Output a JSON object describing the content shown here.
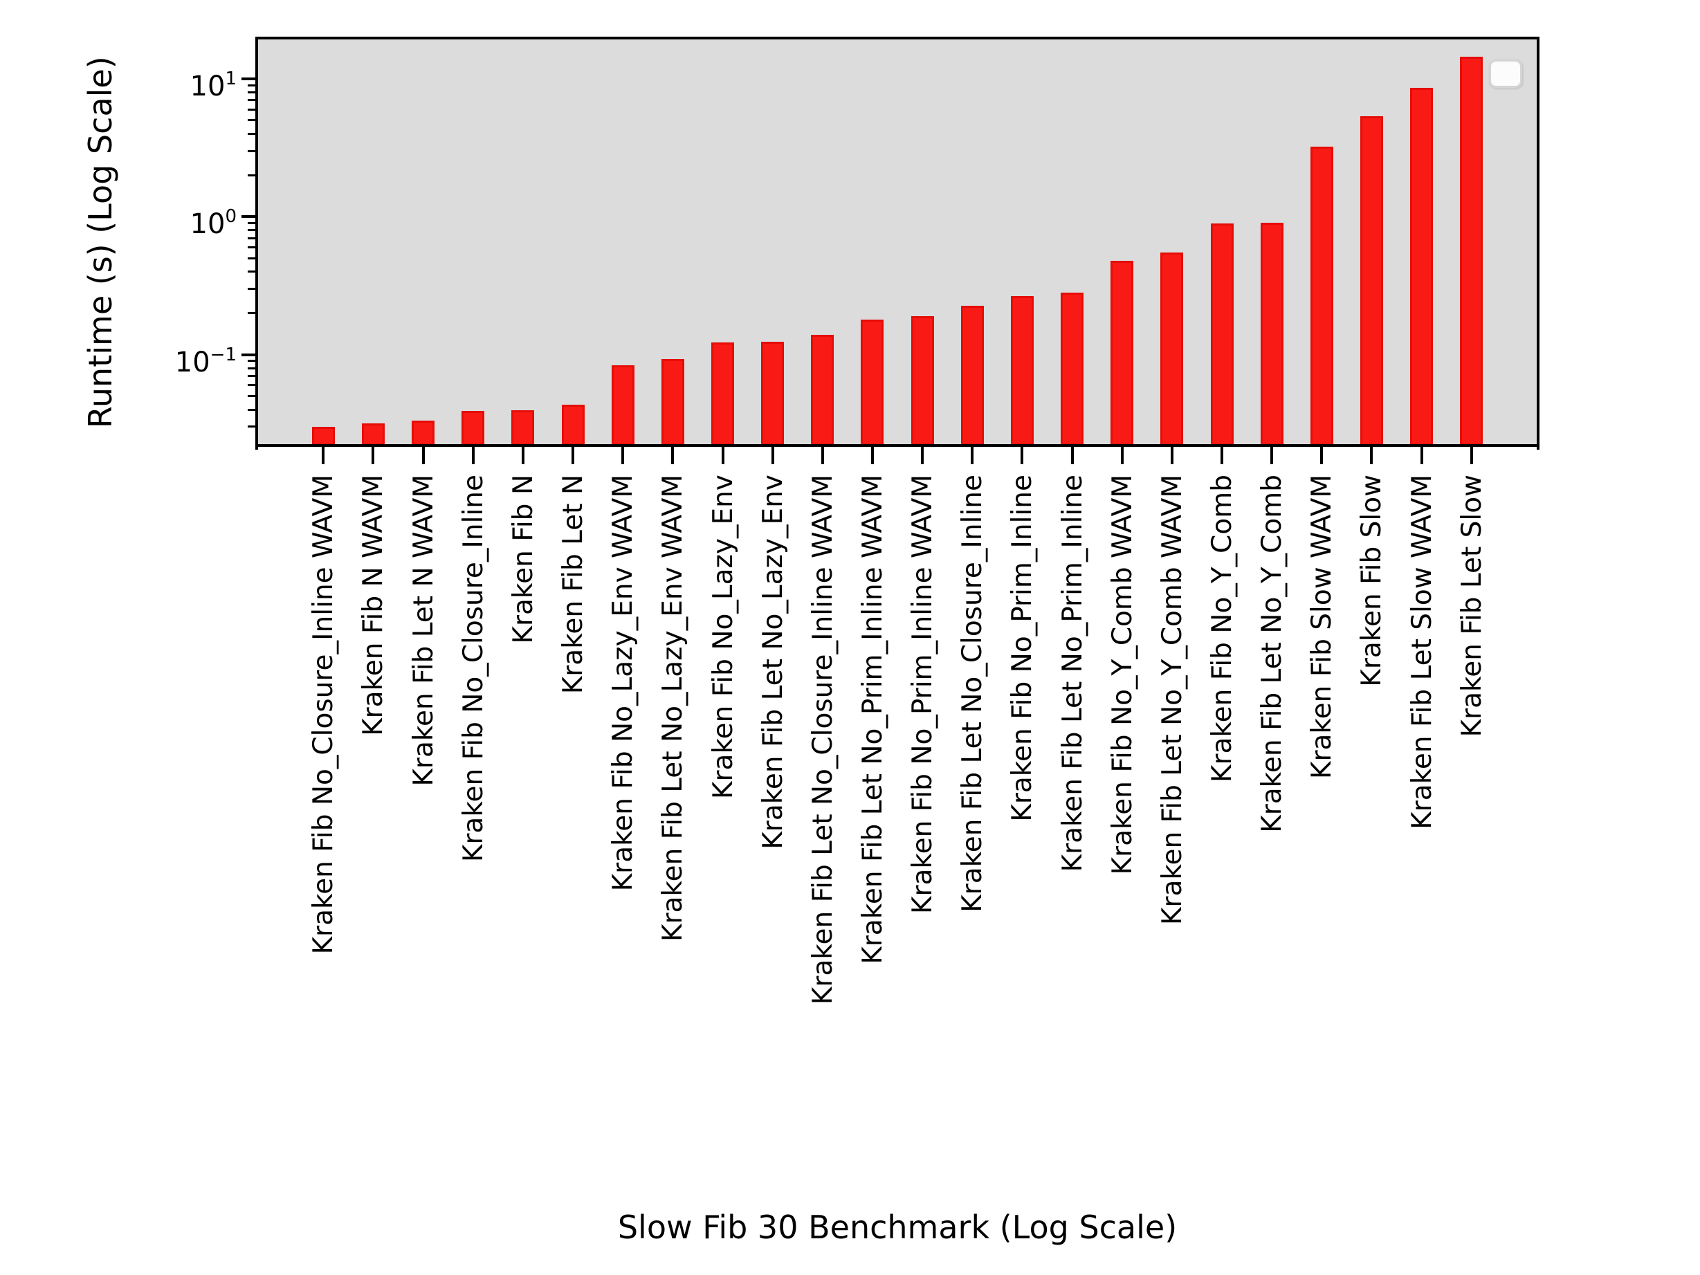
{
  "figure": {
    "y_axis": {
      "label": "Runtime (s) (Log Scale)",
      "scale": "log",
      "major_ticks": [
        {
          "base": "10",
          "exp": "1",
          "value": 10
        },
        {
          "base": "10",
          "exp": "0",
          "value": 1
        },
        {
          "base": "10",
          "exp": "−1",
          "value": 0.1
        }
      ]
    },
    "x_axis": {
      "label": "Slow Fib 30 Benchmark (Log Scale)"
    },
    "legend": {
      "present": true,
      "entries": []
    },
    "colors": {
      "bar_fill": "#fa1a15",
      "bar_edge": "#e60d07",
      "plot_bg": "#dcdcdc",
      "spine": "#000000",
      "figure_bg": "#ffffff",
      "legend_bg": "#fcfcfc",
      "legend_border": "#d5d5d5"
    }
  },
  "chart_data": {
    "type": "bar",
    "title": "",
    "xlabel": "Slow Fib 30 Benchmark (Log Scale)",
    "ylabel": "Runtime (s) (Log Scale)",
    "y_scale": "log",
    "ylim": [
      0.022,
      19.7
    ],
    "grid": false,
    "legend_position": "upper right",
    "bar_color": "#fa1a15",
    "categories": [
      "Kraken Fib No_Closure_Inline WAVM",
      "Kraken Fib N WAVM",
      "Kraken Fib Let N WAVM",
      "Kraken Fib No_Closure_Inline",
      "Kraken Fib N",
      "Kraken Fib Let N",
      "Kraken Fib No_Lazy_Env WAVM",
      "Kraken Fib Let No_Lazy_Env WAVM",
      "Kraken Fib No_Lazy_Env",
      "Kraken Fib Let No_Lazy_Env",
      "Kraken Fib Let No_Closure_Inline WAVM",
      "Kraken Fib Let No_Prim_Inline WAVM",
      "Kraken Fib No_Prim_Inline WAVM",
      "Kraken Fib Let No_Closure_Inline",
      "Kraken Fib No_Prim_Inline",
      "Kraken Fib Let No_Prim_Inline",
      "Kraken Fib No_Y_Comb WAVM",
      "Kraken Fib Let No_Y_Comb WAVM",
      "Kraken Fib No_Y_Comb",
      "Kraken Fib Let No_Y_Comb",
      "Kraken Fib Slow WAVM",
      "Kraken Fib Slow",
      "Kraken Fib Let Slow WAVM",
      "Kraken Fib Let Slow"
    ],
    "values": [
      0.03,
      0.0317,
      0.0334,
      0.039,
      0.0397,
      0.0433,
      0.0841,
      0.0927,
      0.123,
      0.124,
      0.14,
      0.18,
      0.19,
      0.227,
      0.265,
      0.283,
      0.478,
      0.551,
      0.891,
      0.905,
      3.21,
      5.34,
      8.57,
      14.4
    ]
  }
}
